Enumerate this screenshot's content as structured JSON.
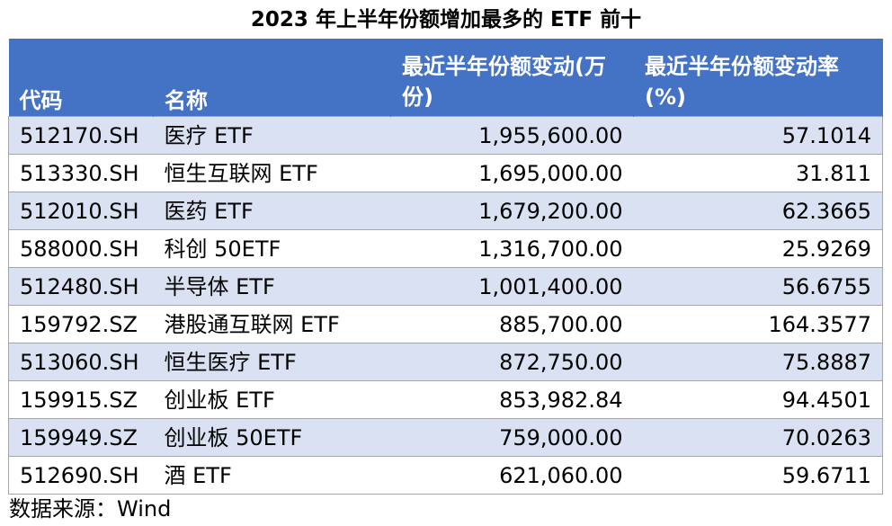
{
  "title": "2023 年上半年份额增加最多的 ETF 前十",
  "headers": {
    "code": "代码",
    "name": "名称",
    "change": "最近半年份额变动(万份)",
    "rate": "最近半年份额变动率(%)"
  },
  "rows": [
    {
      "code": "512170.SH",
      "name": "医疗 ETF",
      "change": "1,955,600.00",
      "rate": "57.1014"
    },
    {
      "code": "513330.SH",
      "name": "恒生互联网 ETF",
      "change": "1,695,000.00",
      "rate": "31.811"
    },
    {
      "code": "512010.SH",
      "name": "医药 ETF",
      "change": "1,679,200.00",
      "rate": "62.3665"
    },
    {
      "code": "588000.SH",
      "name": "科创 50ETF",
      "change": "1,316,700.00",
      "rate": "25.9269"
    },
    {
      "code": "512480.SH",
      "name": "半导体 ETF",
      "change": "1,001,400.00",
      "rate": "56.6755"
    },
    {
      "code": "159792.SZ",
      "name": "港股通互联网 ETF",
      "change": "885,700.00",
      "rate": "164.3577"
    },
    {
      "code": "513060.SH",
      "name": "恒生医疗 ETF",
      "change": "872,750.00",
      "rate": "75.8887"
    },
    {
      "code": "159915.SZ",
      "name": "创业板 ETF",
      "change": "853,982.84",
      "rate": "94.4501"
    },
    {
      "code": "159949.SZ",
      "name": "创业板 50ETF",
      "change": "759,000.00",
      "rate": "70.0263"
    },
    {
      "code": "512690.SH",
      "name": "酒 ETF",
      "change": "621,060.00",
      "rate": "59.6711"
    }
  ],
  "source_note": "数据来源：Wind",
  "colors": {
    "header_bg": "#4472c4",
    "row_stripe": "#d9e1f2",
    "border": "#8ea9db"
  }
}
